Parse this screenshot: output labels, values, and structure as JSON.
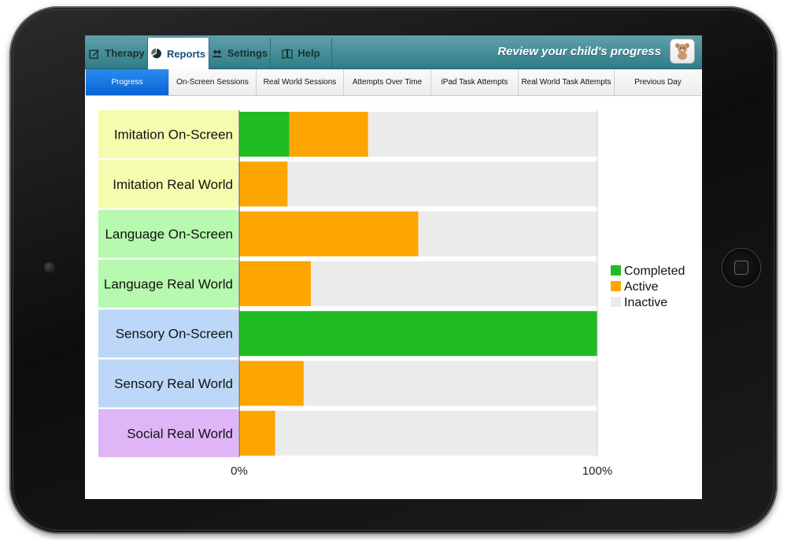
{
  "nav": {
    "tabs": [
      {
        "label": "Therapy",
        "icon": "pencil-square-icon"
      },
      {
        "label": "Reports",
        "icon": "pie-chart-icon"
      },
      {
        "label": "Settings",
        "icon": "users-icon"
      },
      {
        "label": "Help",
        "icon": "book-icon"
      }
    ],
    "active_tab": "Reports",
    "tagline": "Review your child's progress",
    "avatar_icon": "teddy-bear-icon"
  },
  "subtabs": {
    "items": [
      "Progress",
      "On-Screen Sessions",
      "Real World Sessions",
      "Attempts Over Time",
      "iPad Task Attempts",
      "Real World Task Attempts",
      "Previous Day"
    ],
    "active": "Progress"
  },
  "chart_data": {
    "type": "bar",
    "orientation": "horizontal",
    "stacked": true,
    "categories": [
      "Imitation On-Screen",
      "Imitation Real World",
      "Language On-Screen",
      "Language Real World",
      "Sensory On-Screen",
      "Sensory Real World",
      "Social Real World"
    ],
    "category_colors": [
      "#f4fcae",
      "#f4fcae",
      "#b7f9ae",
      "#b7f9ae",
      "#bdd7f8",
      "#bdd7f8",
      "#e0b5f7"
    ],
    "series": [
      {
        "name": "Completed",
        "color": "#21bb24",
        "values": [
          14,
          0,
          0,
          0,
          100,
          0,
          0
        ]
      },
      {
        "name": "Active",
        "color": "#fda500",
        "values": [
          22,
          13.5,
          50,
          20,
          0,
          18,
          10
        ]
      },
      {
        "name": "Inactive",
        "color": "#ebebeb",
        "values": [
          64,
          86.5,
          50,
          80,
          0,
          82,
          90
        ]
      }
    ],
    "xlim": [
      0,
      100
    ],
    "x_ticks": [
      "0%",
      "100%"
    ],
    "legend": "right",
    "grid": false
  }
}
